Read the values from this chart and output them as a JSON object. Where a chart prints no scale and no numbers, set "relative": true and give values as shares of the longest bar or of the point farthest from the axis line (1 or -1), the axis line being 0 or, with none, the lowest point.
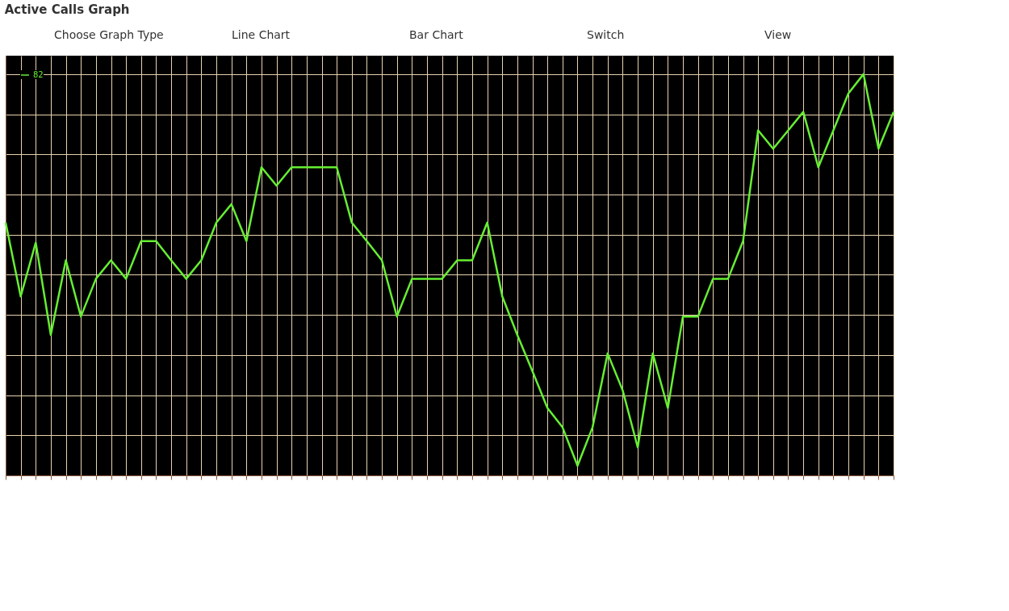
{
  "chart_data": {
    "type": "line",
    "title": "Active Calls Graph",
    "annotations": [
      "Choose Graph Type",
      "Line Chart",
      "Bar Chart",
      "Switch",
      "View"
    ],
    "relative": true,
    "grid": true,
    "legend": "top left",
    "tick_labels": false,
    "marker": "none",
    "line_style": "solid",
    "categories": [
      null,
      null,
      null,
      null,
      null,
      null,
      null,
      null,
      null,
      null,
      null,
      null,
      null,
      null,
      null,
      null,
      null,
      null,
      null,
      null,
      null,
      null,
      null,
      null,
      null,
      null,
      null,
      null,
      null,
      null,
      null,
      null,
      null,
      null,
      null,
      null,
      null,
      null,
      null,
      null,
      null,
      null,
      null,
      null,
      null,
      null,
      null,
      null,
      null,
      null,
      null,
      null,
      null,
      null,
      null,
      null,
      null,
      null,
      null,
      null
    ],
    "series": [
      {
        "name": "82",
        "color": "#66ee33",
        "values": [
          0.63,
          0.446,
          0.58,
          0.35,
          0.536,
          0.396,
          0.49,
          0.536,
          0.49,
          0.584,
          0.584,
          0.536,
          0.49,
          0.536,
          0.63,
          0.676,
          0.584,
          0.768,
          0.722,
          0.768,
          0.768,
          0.768,
          0.768,
          0.63,
          0.584,
          0.536,
          0.396,
          0.49,
          0.49,
          0.49,
          0.536,
          0.536,
          0.63,
          0.446,
          0.35,
          0.26,
          0.168,
          0.12,
          0.024,
          0.12,
          0.304,
          0.212,
          0.07,
          0.304,
          0.168,
          0.396,
          0.396,
          0.49,
          0.49,
          0.584,
          0.86,
          0.814,
          0.86,
          0.906,
          0.768,
          0.86,
          0.952,
          1,
          0.814,
          0.906
        ]
      }
    ]
  }
}
